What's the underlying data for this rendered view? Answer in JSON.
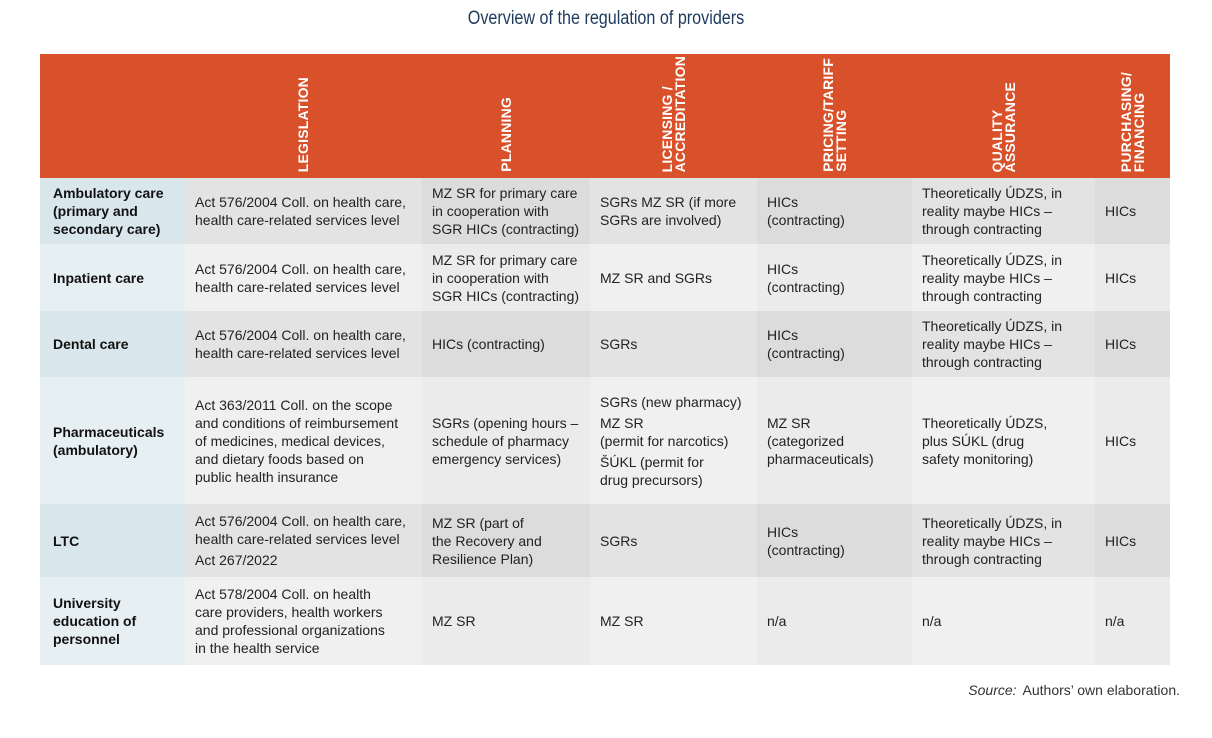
{
  "title": "Overview of the regulation of providers",
  "colors": {
    "header": "#d9512a",
    "label_column": "#d9e7ed",
    "cell": "#dcdcdc"
  },
  "headers": [
    "LEGISLATION",
    "PLANNING",
    "LICENSING /\nACCREDITATION",
    "PRICING/TARIFF\nSETTING",
    "QUALITY\nASSURANCE",
    "PURCHASING/\nFINANCING"
  ],
  "rows": [
    {
      "label": "Ambulatory care\n(primary and\nsecondary care)",
      "cells": [
        [
          "Act 576/2004 Coll. on health care,\nhealth care-related services level"
        ],
        [
          "MZ SR for primary care\nin cooperation with\nSGR HICs (contracting)"
        ],
        [
          "SGRs MZ SR (if more\nSGRs are involved)"
        ],
        [
          "HICs\n(contracting)"
        ],
        [
          "Theoretically ÚDZS, in\nreality maybe HICs –\nthrough contracting"
        ],
        [
          "HICs"
        ]
      ]
    },
    {
      "label": "Inpatient care",
      "cells": [
        [
          "Act 576/2004 Coll. on health care,\nhealth care-related services level"
        ],
        [
          "MZ SR for primary care\nin cooperation with\nSGR HICs (contracting)"
        ],
        [
          "MZ SR and SGRs"
        ],
        [
          "HICs\n(contracting)"
        ],
        [
          "Theoretically ÚDZS, in\nreality maybe HICs –\nthrough contracting"
        ],
        [
          "HICs"
        ]
      ]
    },
    {
      "label": "Dental care",
      "cells": [
        [
          "Act 576/2004 Coll. on health care,\nhealth care-related services level"
        ],
        [
          "HICs (contracting)"
        ],
        [
          "SGRs"
        ],
        [
          "HICs\n(contracting)"
        ],
        [
          "Theoretically ÚDZS, in\nreality maybe HICs –\nthrough contracting"
        ],
        [
          "HICs"
        ]
      ]
    },
    {
      "label": "Pharmaceuticals\n(ambulatory)",
      "cells": [
        [
          "Act 363/2011 Coll. on the scope\nand conditions of reimbursement\nof medicines, medical devices,\nand dietary foods based on\npublic health insurance"
        ],
        [
          "SGRs (opening hours –\nschedule of pharmacy\nemergency services)"
        ],
        [
          "SGRs (new pharmacy)",
          "MZ SR\n(permit for narcotics)",
          "ŠÚKL (permit for\ndrug precursors)"
        ],
        [
          "MZ SR\n(categorized\npharmaceuticals)"
        ],
        [
          "Theoretically ÚDZS,\nplus SÚKL (drug\nsafety monitoring)"
        ],
        [
          "HICs"
        ]
      ]
    },
    {
      "label": "LTC",
      "cells": [
        [
          "Act 576/2004 Coll. on health care,\nhealth care-related services level",
          "Act 267/2022"
        ],
        [
          "MZ SR (part of\nthe Recovery and\nResilience Plan)"
        ],
        [
          "SGRs"
        ],
        [
          "HICs\n(contracting)"
        ],
        [
          "Theoretically ÚDZS, in\nreality maybe HICs –\nthrough contracting"
        ],
        [
          "HICs"
        ]
      ]
    },
    {
      "label": "University\neducation of\npersonnel",
      "cells": [
        [
          "Act 578/2004 Coll. on health\ncare providers, health workers\nand professional organizations\nin the health service"
        ],
        [
          "MZ SR"
        ],
        [
          "MZ SR"
        ],
        [
          "n/a"
        ],
        [
          "n/a"
        ],
        [
          "n/a"
        ]
      ]
    }
  ],
  "source": {
    "label": "Source:",
    "text": "Authors’ own elaboration."
  }
}
